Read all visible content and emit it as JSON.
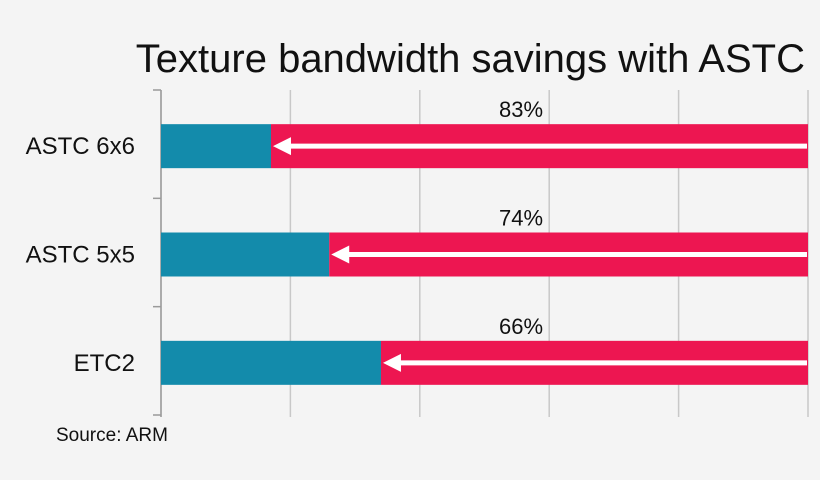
{
  "chart_data": {
    "type": "bar",
    "title": "Texture bandwidth savings with ASTC",
    "source": "Source: ARM",
    "categories": [
      "ASTC 6x6",
      "ASTC 5x5",
      "ETC2"
    ],
    "series": [
      {
        "values": [
          17,
          26,
          34
        ]
      },
      {
        "values": [
          83,
          74,
          66
        ]
      }
    ],
    "data_labels": [
      "83%",
      "74%",
      "66%"
    ],
    "xlim": [
      0,
      100
    ],
    "grid": true,
    "colors": {
      "remaining": "#138bab",
      "savings": "#ed1651",
      "arrow": "#ffffff",
      "grid": "#c8c8c8"
    }
  }
}
